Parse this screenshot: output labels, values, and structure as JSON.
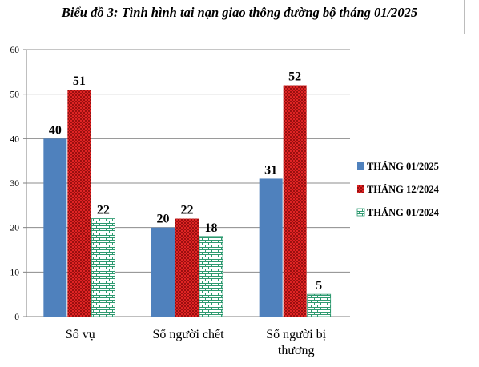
{
  "chart_data": {
    "type": "bar",
    "title": "Biểu đồ 3: Tình hình tai nạn giao thông đường bộ tháng 01/2025",
    "categories": [
      [
        "Số vụ"
      ],
      [
        "Số người chết"
      ],
      [
        "Số người bị",
        "thương"
      ]
    ],
    "series": [
      {
        "name": "THÁNG 01/2025",
        "values": [
          40,
          20,
          31
        ],
        "color": "#4f81bd",
        "pattern": "solid"
      },
      {
        "name": "THÁNG 12/2024",
        "values": [
          51,
          22,
          52
        ],
        "color": "#d42020",
        "pattern": "dots"
      },
      {
        "name": "THÁNG 01/2024",
        "values": [
          22,
          18,
          5
        ],
        "color": "#2e9a70",
        "pattern": "bricks"
      }
    ],
    "y_ticks": [
      0,
      10,
      20,
      30,
      40,
      50,
      60
    ],
    "ylim": [
      0,
      60
    ],
    "grid": true,
    "legend_position": "right"
  }
}
